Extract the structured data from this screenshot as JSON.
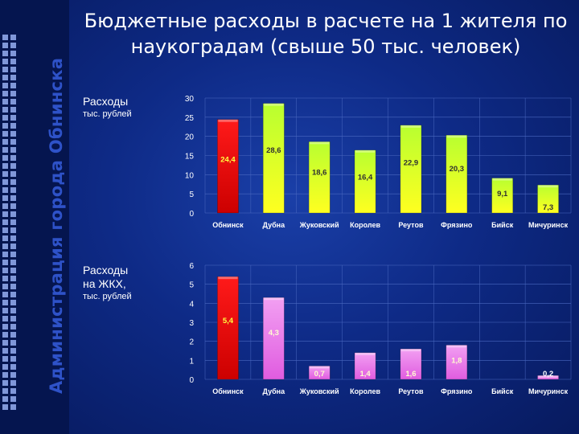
{
  "title": "Бюджетные расходы в расчете на 1 жителя по наукоградам (свыше 50 тыс. человек)",
  "side_label": "Администрация города Обнинска",
  "chart_data": [
    {
      "type": "bar",
      "label_line1": "Расходы",
      "label_line2": "",
      "unit": "тыс. рублей",
      "categories": [
        "Обнинск",
        "Дубна",
        "Жуковский",
        "Королев",
        "Реутов",
        "Фрязино",
        "Бийск",
        "Мичуринск"
      ],
      "values": [
        24.4,
        28.6,
        18.6,
        16.4,
        22.9,
        20.3,
        9.1,
        7.3
      ],
      "value_labels": [
        "24,4",
        "28,6",
        "18,6",
        "16,4",
        "22,9",
        "20,3",
        "9,1",
        "7,3"
      ],
      "ylim": [
        0,
        30
      ],
      "yticks": [
        0,
        5,
        10,
        15,
        20,
        25,
        30
      ],
      "colors": [
        "#ff1a1a",
        "#b8ff30",
        "#b8ff30",
        "#b8ff30",
        "#b8ff30",
        "#b8ff30",
        "#b8ff30",
        "#b8ff30"
      ],
      "colors_bottom": [
        "#cc0000",
        "#ffff20",
        "#ffff20",
        "#ffff20",
        "#ffff20",
        "#ffff20",
        "#ffff20",
        "#ffff20"
      ]
    },
    {
      "type": "bar",
      "label_line1": "Расходы",
      "label_line2": "на ЖКХ,",
      "unit": "тыс. рублей",
      "categories": [
        "Обнинск",
        "Дубна",
        "Жуковский",
        "Королев",
        "Реутов",
        "Фрязино",
        "Бийск",
        "Мичуринск"
      ],
      "values": [
        5.4,
        4.3,
        0.7,
        1.4,
        1.6,
        1.8,
        0,
        0.2
      ],
      "value_labels": [
        "5,4",
        "4,3",
        "0,7",
        "1,4",
        "1,6",
        "1,8",
        "",
        "0,2"
      ],
      "ylim": [
        0,
        6
      ],
      "yticks": [
        0,
        1,
        2,
        3,
        4,
        5,
        6
      ],
      "colors": [
        "#ff1a1a",
        "#f2a0f2",
        "#f2a0f2",
        "#f2a0f2",
        "#f2a0f2",
        "#f2a0f2",
        "#f2a0f2",
        "#f2a0f2"
      ],
      "colors_bottom": [
        "#cc0000",
        "#e05ce0",
        "#e05ce0",
        "#e05ce0",
        "#e05ce0",
        "#e05ce0",
        "#e05ce0",
        "#e05ce0"
      ]
    }
  ]
}
